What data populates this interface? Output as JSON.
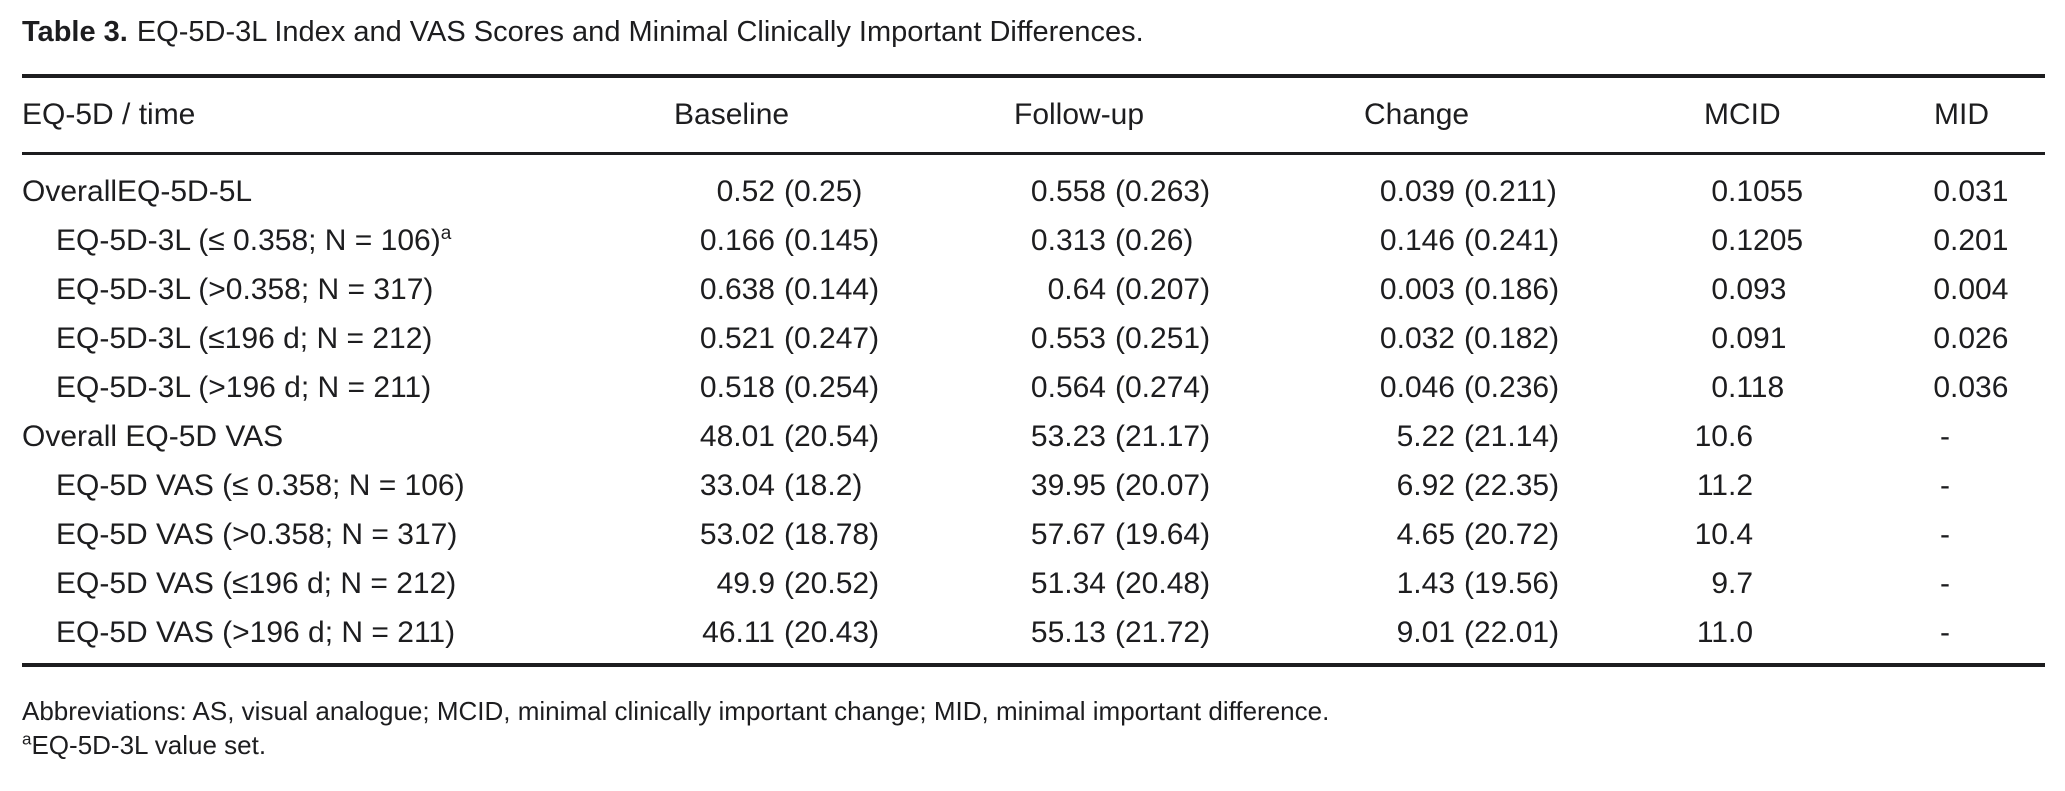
{
  "title": {
    "label": "Table 3.",
    "text": "EQ-5D-3L Index and VAS Scores and Minimal Clinically Important Differences."
  },
  "table": {
    "headers": [
      "EQ-5D / time",
      "Baseline",
      "Follow-up",
      "Change",
      "MCID",
      "MID"
    ],
    "rows": [
      {
        "label": "OverallEQ-5D-5L",
        "sup": "",
        "indent": false,
        "baseline": {
          "mean": "0.52",
          "sd": "0.25"
        },
        "followup": {
          "mean": "0.558",
          "sd": "0.263"
        },
        "change": {
          "mean": "0.039",
          "sd": "0.211"
        },
        "mcid": "0.1055",
        "mid": "0.031"
      },
      {
        "label": "EQ-5D-3L (≤ 0.358; N = 106)",
        "sup": "a",
        "indent": true,
        "baseline": {
          "mean": "0.166",
          "sd": "0.145"
        },
        "followup": {
          "mean": "0.313",
          "sd": "0.26"
        },
        "change": {
          "mean": "0.146",
          "sd": "0.241"
        },
        "mcid": "0.1205",
        "mid": "0.201"
      },
      {
        "label": "EQ-5D-3L (>0.358; N = 317)",
        "sup": "",
        "indent": true,
        "baseline": {
          "mean": "0.638",
          "sd": "0.144"
        },
        "followup": {
          "mean": "0.64",
          "sd": "0.207"
        },
        "change": {
          "mean": "0.003",
          "sd": "0.186"
        },
        "mcid": "0.093",
        "mid": "0.004"
      },
      {
        "label": "EQ-5D-3L (≤196 d; N = 212)",
        "sup": "",
        "indent": true,
        "baseline": {
          "mean": "0.521",
          "sd": "0.247"
        },
        "followup": {
          "mean": "0.553",
          "sd": "0.251"
        },
        "change": {
          "mean": "0.032",
          "sd": "0.182"
        },
        "mcid": "0.091",
        "mid": "0.026"
      },
      {
        "label": "EQ-5D-3L (>196 d; N = 211)",
        "sup": "",
        "indent": true,
        "baseline": {
          "mean": "0.518",
          "sd": "0.254"
        },
        "followup": {
          "mean": "0.564",
          "sd": "0.274"
        },
        "change": {
          "mean": "0.046",
          "sd": "0.236"
        },
        "mcid": "0.118",
        "mid": "0.036"
      },
      {
        "label": "Overall EQ-5D VAS",
        "sup": "",
        "indent": false,
        "baseline": {
          "mean": "48.01",
          "sd": "20.54"
        },
        "followup": {
          "mean": "53.23",
          "sd": "21.17"
        },
        "change": {
          "mean": "5.22",
          "sd": "21.14"
        },
        "mcid": "10.6",
        "mid": "-"
      },
      {
        "label": "EQ-5D VAS (≤ 0.358; N = 106)",
        "sup": "",
        "indent": true,
        "baseline": {
          "mean": "33.04",
          "sd": "18.2"
        },
        "followup": {
          "mean": "39.95",
          "sd": "20.07"
        },
        "change": {
          "mean": "6.92",
          "sd": "22.35"
        },
        "mcid": "11.2",
        "mid": "-"
      },
      {
        "label": "EQ-5D VAS (>0.358; N = 317)",
        "sup": "",
        "indent": true,
        "baseline": {
          "mean": "53.02",
          "sd": "18.78"
        },
        "followup": {
          "mean": "57.67",
          "sd": "19.64"
        },
        "change": {
          "mean": "4.65",
          "sd": "20.72"
        },
        "mcid": "10.4",
        "mid": "-"
      },
      {
        "label": "EQ-5D VAS (≤196 d; N = 212)",
        "sup": "",
        "indent": true,
        "baseline": {
          "mean": "49.9",
          "sd": "20.52"
        },
        "followup": {
          "mean": "51.34",
          "sd": "20.48"
        },
        "change": {
          "mean": "1.43",
          "sd": "19.56"
        },
        "mcid": "9.7",
        "mid": "-"
      },
      {
        "label": "EQ-5D VAS (>196 d; N = 211)",
        "sup": "",
        "indent": true,
        "baseline": {
          "mean": "46.11",
          "sd": "20.43"
        },
        "followup": {
          "mean": "55.13",
          "sd": "21.72"
        },
        "change": {
          "mean": "9.01",
          "sd": "22.01"
        },
        "mcid": "11.0",
        "mid": "-"
      }
    ]
  },
  "footnotes": {
    "abbreviations": "Abbreviations: AS, visual analogue; MCID, minimal clinically important change; MID, minimal important difference.",
    "note_sup": "a",
    "note_text": "EQ-5D-3L value set."
  },
  "colors": {
    "text": "#1d1d1f",
    "background": "#ffffff",
    "rule": "#1d1d1f"
  }
}
